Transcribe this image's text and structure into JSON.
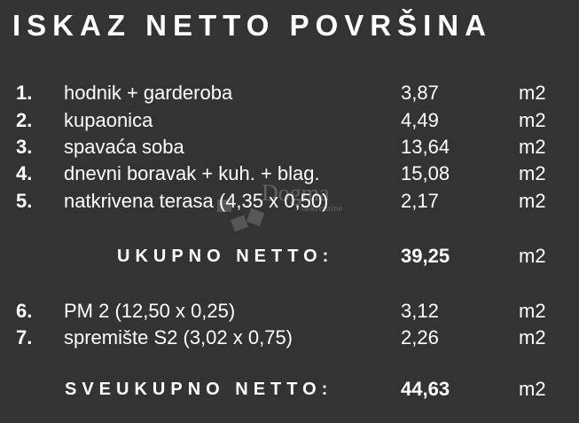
{
  "title": "ISKAZ NETTO POVRŠINA",
  "items": [
    {
      "num": "1.",
      "desc": "hodnik + garderoba",
      "value": "3,87",
      "unit": "m2"
    },
    {
      "num": "2.",
      "desc": "kupaonica",
      "value": "4,49",
      "unit": "m2"
    },
    {
      "num": "3.",
      "desc": "spavaća soba",
      "value": "13,64",
      "unit": "m2"
    },
    {
      "num": "4.",
      "desc": "dnevni boravak + kuh. + blag.",
      "value": "15,08",
      "unit": "m2"
    },
    {
      "num": "5.",
      "desc": "natkrivena terasa (4,35 x 0,50)",
      "value": "2,17",
      "unit": "m2"
    },
    {
      "num": "6.",
      "desc": "PM 2 (12,50 x 0,25)",
      "value": "3,12",
      "unit": "m2"
    },
    {
      "num": "7.",
      "desc": "spremište S2 (3,02 x 0,75)",
      "value": "2,26",
      "unit": "m2"
    }
  ],
  "subtotal": {
    "label": "UKUPNO NETTO:",
    "value": "39,25",
    "unit": "m2"
  },
  "total": {
    "label": "SVEUKUPNO NETTO:",
    "value": "44,63",
    "unit": "m2"
  },
  "watermark": {
    "name": "Dogma",
    "sub": "nekretnine"
  }
}
